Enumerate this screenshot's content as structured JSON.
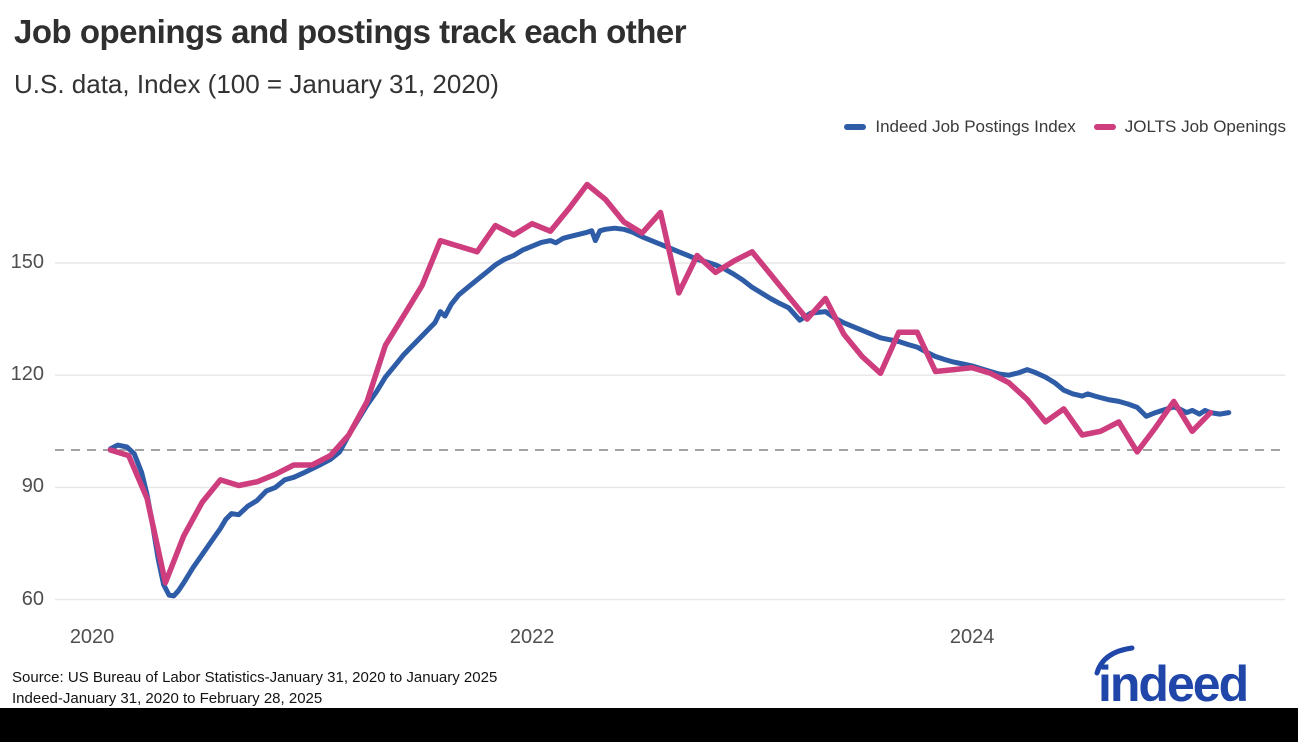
{
  "header": {
    "title": "Job openings and postings track each other",
    "subtitle": "U.S. data, Index (100 = January 31, 2020)"
  },
  "legend": {
    "items": [
      {
        "label": "Indeed Job Postings Index",
        "color": "#2e5ca7"
      },
      {
        "label": "JOLTS Job Openings",
        "color": "#ce3d7d"
      }
    ]
  },
  "footer": {
    "source_line1": "Source: US Bureau of Labor Statistics-January 31, 2020 to January 2025",
    "source_line2": "Indeed-January 31, 2020 to February 28, 2025",
    "logo_text": "indeed",
    "logo_color": "#1f46a8"
  },
  "colors": {
    "grid": "#e7e7e7",
    "reference_dash": "#a3a3a3",
    "tick_text": "#4f4f4f",
    "title_text": "#2f2f2f"
  },
  "chart_data": {
    "type": "line",
    "title": "Job openings and postings track each other",
    "subtitle": "U.S. data, Index (100 = January 31, 2020)",
    "x_unit": "months since 2020-01-31",
    "x_range_months": [
      0,
      61
    ],
    "x_tick_labels": [
      "2020",
      "2022",
      "2024"
    ],
    "x_tick_years": [
      2020,
      2022,
      2024
    ],
    "y_ticks": [
      60,
      90,
      120,
      150
    ],
    "y_reference": 100,
    "ylim": [
      55,
      175
    ],
    "grid": "horizontal",
    "legend_position": "top-right",
    "series": [
      {
        "name": "Indeed Job Postings Index",
        "color": "#2e5ca7",
        "width": 5,
        "points": [
          [
            0,
            100.3
          ],
          [
            0.4,
            101.3
          ],
          [
            0.9,
            100.8
          ],
          [
            1.3,
            99
          ],
          [
            1.7,
            94
          ],
          [
            2,
            88
          ],
          [
            2.3,
            80
          ],
          [
            2.6,
            71
          ],
          [
            2.9,
            64
          ],
          [
            3.2,
            61.2
          ],
          [
            3.45,
            61
          ],
          [
            3.7,
            62.3
          ],
          [
            4,
            64.5
          ],
          [
            4.5,
            68.5
          ],
          [
            5,
            72
          ],
          [
            5.5,
            75.5
          ],
          [
            6,
            79
          ],
          [
            6.3,
            81.5
          ],
          [
            6.6,
            83
          ],
          [
            7,
            82.7
          ],
          [
            7.5,
            85
          ],
          [
            8,
            86.5
          ],
          [
            8.5,
            89
          ],
          [
            9,
            90
          ],
          [
            9.5,
            92
          ],
          [
            10,
            92.7
          ],
          [
            10.5,
            93.8
          ],
          [
            11,
            95
          ],
          [
            11.5,
            96.2
          ],
          [
            12,
            97.5
          ],
          [
            12.5,
            99.5
          ],
          [
            13,
            104
          ],
          [
            13.5,
            108
          ],
          [
            14,
            112
          ],
          [
            14.5,
            115.5
          ],
          [
            15,
            119.5
          ],
          [
            15.5,
            122.5
          ],
          [
            16,
            125.5
          ],
          [
            16.5,
            128
          ],
          [
            17,
            130.5
          ],
          [
            17.4,
            132.5
          ],
          [
            17.7,
            134
          ],
          [
            18,
            137
          ],
          [
            18.25,
            135.8
          ],
          [
            18.6,
            139
          ],
          [
            19,
            141.5
          ],
          [
            19.5,
            143.5
          ],
          [
            20,
            145.5
          ],
          [
            20.5,
            147.5
          ],
          [
            21,
            149.5
          ],
          [
            21.5,
            151
          ],
          [
            22,
            152
          ],
          [
            22.5,
            153.5
          ],
          [
            23,
            154.5
          ],
          [
            23.5,
            155.5
          ],
          [
            24,
            156
          ],
          [
            24.3,
            155.4
          ],
          [
            24.7,
            156.6
          ],
          [
            25,
            157
          ],
          [
            25.5,
            157.6
          ],
          [
            26,
            158.2
          ],
          [
            26.25,
            158.6
          ],
          [
            26.45,
            156
          ],
          [
            26.7,
            158.6
          ],
          [
            27,
            159
          ],
          [
            27.5,
            159.3
          ],
          [
            28,
            159
          ],
          [
            28.5,
            158.2
          ],
          [
            29,
            157
          ],
          [
            29.5,
            156
          ],
          [
            30,
            155
          ],
          [
            30.5,
            154
          ],
          [
            31,
            153
          ],
          [
            31.5,
            152
          ],
          [
            32,
            151
          ],
          [
            32.5,
            150.3
          ],
          [
            33,
            149.5
          ],
          [
            33.5,
            148.4
          ],
          [
            34,
            147
          ],
          [
            34.5,
            145.4
          ],
          [
            35,
            143.5
          ],
          [
            35.5,
            142
          ],
          [
            36,
            140.5
          ],
          [
            36.5,
            139.2
          ],
          [
            37,
            138
          ],
          [
            37.6,
            134.7
          ],
          [
            38.2,
            136.6
          ],
          [
            39,
            137
          ],
          [
            39.5,
            135.3
          ],
          [
            40,
            134
          ],
          [
            40.5,
            133
          ],
          [
            41,
            132
          ],
          [
            41.5,
            131
          ],
          [
            42,
            130
          ],
          [
            42.5,
            129.5
          ],
          [
            43,
            129
          ],
          [
            43.5,
            128.2
          ],
          [
            44,
            127.5
          ],
          [
            44.5,
            126.2
          ],
          [
            45,
            125
          ],
          [
            45.5,
            124.2
          ],
          [
            46,
            123.5
          ],
          [
            46.5,
            123
          ],
          [
            47,
            122.5
          ],
          [
            47.5,
            121.7
          ],
          [
            48,
            121
          ],
          [
            48.5,
            120.3
          ],
          [
            49,
            120
          ],
          [
            49.5,
            120.6
          ],
          [
            50,
            121.5
          ],
          [
            50.4,
            120.8
          ],
          [
            51,
            119.5
          ],
          [
            51.5,
            118
          ],
          [
            52,
            116
          ],
          [
            52.5,
            115
          ],
          [
            53,
            114.4
          ],
          [
            53.3,
            115
          ],
          [
            53.7,
            114.4
          ],
          [
            54,
            114
          ],
          [
            54.5,
            113.4
          ],
          [
            55,
            113
          ],
          [
            55.5,
            112.3
          ],
          [
            56,
            111.4
          ],
          [
            56.5,
            109
          ],
          [
            57,
            110
          ],
          [
            57.5,
            110.8
          ],
          [
            58,
            111.5
          ],
          [
            58.3,
            111
          ],
          [
            58.7,
            110
          ],
          [
            59,
            110.6
          ],
          [
            59.4,
            109.6
          ],
          [
            59.7,
            110.6
          ],
          [
            60,
            110
          ],
          [
            60.5,
            109.6
          ],
          [
            61,
            110
          ]
        ]
      },
      {
        "name": "JOLTS Job Openings",
        "color": "#ce3d7d",
        "width": 5.5,
        "points": [
          [
            0,
            100
          ],
          [
            1,
            98.5
          ],
          [
            2,
            87
          ],
          [
            3,
            64.5
          ],
          [
            4,
            77
          ],
          [
            5,
            86
          ],
          [
            6,
            92
          ],
          [
            7,
            90.5
          ],
          [
            8,
            91.5
          ],
          [
            9,
            93.5
          ],
          [
            10,
            96
          ],
          [
            11,
            96
          ],
          [
            12,
            98.5
          ],
          [
            13,
            104
          ],
          [
            14,
            113
          ],
          [
            15,
            128
          ],
          [
            16,
            136
          ],
          [
            17,
            144
          ],
          [
            18,
            156
          ],
          [
            19,
            154.5
          ],
          [
            20,
            153
          ],
          [
            21,
            160
          ],
          [
            22,
            157.5
          ],
          [
            23,
            160.5
          ],
          [
            24,
            158.5
          ],
          [
            25,
            164.5
          ],
          [
            26,
            171
          ],
          [
            27,
            167
          ],
          [
            28,
            161
          ],
          [
            29,
            158
          ],
          [
            30,
            163.5
          ],
          [
            31,
            142
          ],
          [
            32,
            152
          ],
          [
            33,
            147.5
          ],
          [
            34,
            150.5
          ],
          [
            35,
            153
          ],
          [
            36,
            147
          ],
          [
            37,
            141
          ],
          [
            38,
            135
          ],
          [
            39,
            140.5
          ],
          [
            40,
            131
          ],
          [
            41,
            125
          ],
          [
            42,
            120.5
          ],
          [
            43,
            131.5
          ],
          [
            44,
            131.5
          ],
          [
            45,
            121
          ],
          [
            46,
            121.5
          ],
          [
            47,
            122
          ],
          [
            48,
            120.5
          ],
          [
            49,
            118
          ],
          [
            50,
            113.5
          ],
          [
            51,
            107.5
          ],
          [
            52,
            111
          ],
          [
            53,
            104
          ],
          [
            54,
            105
          ],
          [
            55,
            107.5
          ],
          [
            56,
            99.5
          ],
          [
            57,
            106
          ],
          [
            58,
            113
          ],
          [
            59,
            105
          ],
          [
            60,
            110
          ]
        ]
      }
    ]
  }
}
